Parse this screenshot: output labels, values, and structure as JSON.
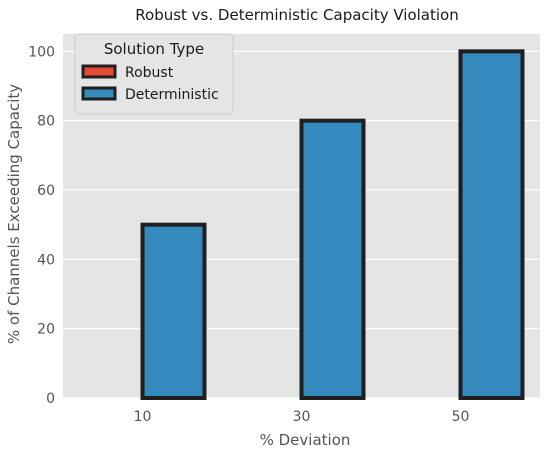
{
  "chart_data": {
    "type": "bar",
    "title": "Robust vs. Deterministic Capacity Violation",
    "xlabel": "% Deviation",
    "ylabel": "% of Channels Exceeding Capacity",
    "categories": [
      "10",
      "30",
      "50"
    ],
    "series": [
      {
        "name": "Robust",
        "values": [
          0,
          0,
          0
        ],
        "color": "#e24a33"
      },
      {
        "name": "Deterministic",
        "values": [
          50,
          80,
          100
        ],
        "color": "#348abd"
      }
    ],
    "ylim": [
      0,
      105
    ],
    "yticks": [
      0,
      20,
      40,
      60,
      80,
      100
    ],
    "grid": true,
    "legend": {
      "title": "Solution Type",
      "placement": "top-left"
    },
    "background_color": "#e5e5e5",
    "edge_color": "#1f1f1f"
  }
}
